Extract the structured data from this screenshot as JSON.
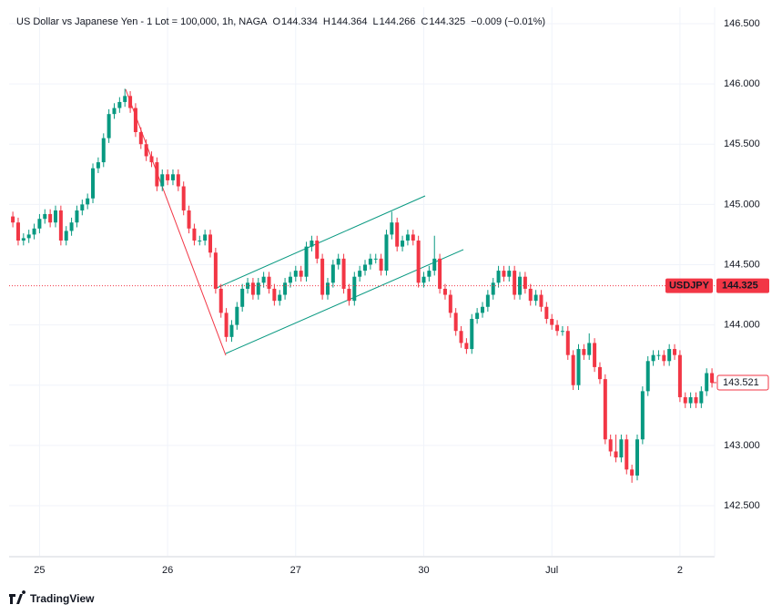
{
  "chart_data": {
    "type": "candlestick",
    "title": "US Dollar vs Japanese Yen - 1 Lot = 100,000, 1h, NAGA",
    "ohlc_legend": [
      {
        "label": "O",
        "value": 144.334
      },
      {
        "label": "H",
        "value": 144.364
      },
      {
        "label": "L",
        "value": 144.266
      },
      {
        "label": "C",
        "value": 144.325
      }
    ],
    "change": "−0.009 (−0.01%)",
    "up_color": "#089981",
    "down_color": "#f23645",
    "open": [
      144.9,
      144.85,
      144.7,
      144.72,
      144.75,
      144.8,
      144.88,
      144.92,
      144.85,
      144.95,
      144.7,
      144.78,
      144.85,
      144.95,
      145.0,
      145.05,
      145.3,
      145.35,
      145.55,
      145.75,
      145.8,
      145.85,
      145.9,
      145.8,
      145.6,
      145.5,
      145.4,
      145.35,
      145.15,
      145.25,
      145.2,
      145.25,
      145.15,
      144.95,
      144.8,
      144.7,
      144.7,
      144.75,
      144.6,
      144.3,
      144.1,
      143.9,
      144.0,
      144.15,
      144.3,
      144.35,
      144.25,
      144.35,
      144.4,
      144.3,
      144.2,
      144.25,
      144.35,
      144.4,
      144.45,
      144.4,
      144.65,
      144.7,
      144.55,
      144.25,
      144.35,
      144.5,
      144.55,
      144.3,
      144.2,
      144.4,
      144.45,
      144.5,
      144.55,
      144.55,
      144.45,
      144.75,
      144.85,
      144.65,
      144.7,
      144.75,
      144.7,
      144.35,
      144.4,
      144.45,
      144.55,
      144.3,
      144.25,
      144.1,
      143.95,
      143.85,
      143.8,
      144.05,
      144.1,
      144.15,
      144.25,
      144.35,
      144.45,
      144.4,
      144.45,
      144.25,
      144.4,
      144.3,
      144.2,
      144.25,
      144.15,
      144.05,
      144.0,
      143.95,
      143.95,
      143.75,
      143.5,
      143.8,
      143.75,
      143.85,
      143.65,
      143.55,
      143.05,
      142.95,
      142.9,
      143.05,
      142.8,
      142.75,
      143.05,
      143.45,
      143.7,
      143.75,
      143.75,
      143.7,
      143.8,
      143.75,
      143.4,
      143.35,
      143.4,
      143.35,
      143.45,
      143.6
    ],
    "high": [
      144.94,
      144.89,
      144.76,
      144.79,
      144.84,
      144.92,
      144.96,
      144.96,
      144.99,
      144.99,
      144.82,
      144.89,
      144.99,
      145.04,
      145.09,
      145.34,
      145.39,
      145.59,
      145.79,
      145.84,
      145.89,
      145.96,
      145.94,
      145.84,
      145.64,
      145.54,
      145.44,
      145.39,
      145.29,
      145.29,
      145.29,
      145.29,
      145.19,
      144.99,
      144.84,
      144.74,
      144.79,
      144.79,
      144.64,
      144.34,
      144.14,
      144.04,
      144.19,
      144.34,
      144.39,
      144.39,
      144.39,
      144.44,
      144.44,
      144.34,
      144.29,
      144.39,
      144.44,
      144.49,
      144.49,
      144.69,
      144.74,
      144.74,
      144.59,
      144.39,
      144.54,
      144.59,
      144.59,
      144.34,
      144.44,
      144.49,
      144.54,
      144.59,
      144.59,
      144.59,
      144.79,
      144.94,
      144.89,
      144.74,
      144.79,
      144.79,
      144.74,
      144.44,
      144.49,
      144.74,
      144.59,
      144.34,
      144.29,
      144.14,
      143.99,
      143.89,
      144.09,
      144.14,
      144.19,
      144.29,
      144.39,
      144.49,
      144.49,
      144.49,
      144.49,
      144.44,
      144.44,
      144.34,
      144.29,
      144.29,
      144.19,
      144.09,
      144.04,
      143.99,
      143.99,
      143.79,
      143.84,
      143.84,
      143.93,
      143.89,
      143.69,
      143.59,
      143.09,
      143.09,
      143.09,
      143.09,
      142.84,
      143.09,
      143.49,
      143.74,
      143.79,
      143.79,
      143.79,
      143.84,
      143.84,
      143.79,
      143.44,
      143.44,
      143.44,
      143.49,
      143.64,
      143.64
    ],
    "low": [
      144.81,
      144.66,
      144.66,
      144.68,
      144.71,
      144.76,
      144.84,
      144.81,
      144.81,
      144.66,
      144.66,
      144.74,
      144.81,
      144.91,
      144.96,
      145.01,
      145.26,
      145.31,
      145.51,
      145.71,
      145.76,
      145.81,
      145.76,
      145.56,
      145.46,
      145.36,
      145.31,
      145.11,
      145.11,
      145.16,
      145.16,
      145.11,
      144.91,
      144.76,
      144.66,
      144.66,
      144.66,
      144.56,
      144.26,
      144.06,
      143.86,
      143.86,
      143.96,
      144.11,
      144.26,
      144.21,
      144.21,
      144.31,
      144.26,
      144.16,
      144.16,
      144.21,
      144.31,
      144.36,
      144.36,
      144.36,
      144.61,
      144.51,
      144.21,
      144.21,
      144.31,
      144.46,
      144.26,
      144.16,
      144.16,
      144.36,
      144.41,
      144.46,
      144.51,
      144.41,
      144.41,
      144.71,
      144.61,
      144.61,
      144.66,
      144.66,
      144.31,
      144.31,
      144.36,
      144.41,
      144.26,
      144.21,
      144.06,
      143.91,
      143.81,
      143.76,
      143.76,
      144.01,
      144.06,
      144.11,
      144.21,
      144.31,
      144.36,
      144.36,
      144.21,
      144.21,
      144.26,
      144.16,
      144.16,
      144.11,
      144.01,
      143.96,
      143.91,
      143.91,
      143.71,
      143.46,
      143.46,
      143.71,
      143.71,
      143.61,
      143.51,
      143.01,
      142.91,
      142.86,
      142.86,
      142.76,
      142.69,
      142.71,
      143.01,
      143.41,
      143.66,
      143.71,
      143.66,
      143.66,
      143.71,
      143.36,
      143.31,
      143.31,
      143.31,
      143.31,
      143.41,
      143.48
    ],
    "close": [
      144.85,
      144.7,
      144.72,
      144.75,
      144.8,
      144.88,
      144.92,
      144.85,
      144.95,
      144.7,
      144.78,
      144.85,
      144.95,
      145.0,
      145.05,
      145.3,
      145.35,
      145.55,
      145.75,
      145.8,
      145.85,
      145.9,
      145.8,
      145.6,
      145.5,
      145.4,
      145.35,
      145.15,
      145.25,
      145.2,
      145.25,
      145.15,
      144.95,
      144.8,
      144.7,
      144.7,
      144.75,
      144.6,
      144.3,
      144.1,
      143.9,
      144.0,
      144.15,
      144.3,
      144.35,
      144.25,
      144.35,
      144.4,
      144.3,
      144.2,
      144.25,
      144.35,
      144.4,
      144.45,
      144.4,
      144.65,
      144.7,
      144.55,
      144.25,
      144.35,
      144.5,
      144.55,
      144.3,
      144.2,
      144.4,
      144.45,
      144.5,
      144.55,
      144.55,
      144.45,
      144.75,
      144.85,
      144.65,
      144.7,
      144.75,
      144.7,
      144.35,
      144.4,
      144.45,
      144.55,
      144.3,
      144.25,
      144.1,
      143.95,
      143.85,
      143.8,
      144.05,
      144.1,
      144.15,
      144.25,
      144.35,
      144.45,
      144.4,
      144.45,
      144.25,
      144.4,
      144.3,
      144.2,
      144.25,
      144.15,
      144.05,
      144.0,
      143.95,
      143.95,
      143.75,
      143.5,
      143.8,
      143.75,
      143.85,
      143.65,
      143.55,
      143.05,
      142.95,
      142.9,
      143.05,
      142.8,
      142.75,
      143.05,
      143.45,
      143.7,
      143.75,
      143.75,
      143.7,
      143.8,
      143.75,
      143.4,
      143.35,
      143.4,
      143.35,
      143.45,
      143.6,
      143.52
    ],
    "xlim": [
      -0.7,
      131.5
    ],
    "xticks": [
      {
        "value": 5,
        "label": "25"
      },
      {
        "value": 29,
        "label": "26"
      },
      {
        "value": 53,
        "label": "27"
      },
      {
        "value": 77,
        "label": "30"
      },
      {
        "value": 101,
        "label": "Jul"
      },
      {
        "value": 125,
        "label": "2"
      }
    ],
    "ylim": [
      142.084,
      146.636
    ],
    "yticks": [
      {
        "value": 142.5,
        "label": "142.500"
      },
      {
        "value": 143,
        "label": "143.000"
      },
      {
        "value": 143.5,
        "label": "143.500"
      },
      {
        "value": 144,
        "label": "144.000"
      },
      {
        "value": 144.5,
        "label": "144.500"
      },
      {
        "value": 145,
        "label": "145.000"
      },
      {
        "value": 145.5,
        "label": "145.500"
      },
      {
        "value": 146,
        "label": "146.000"
      },
      {
        "value": 146.5,
        "label": "146.500"
      }
    ],
    "grid": true,
    "price_labels": [
      {
        "name": "USDJPY",
        "value": 144.325,
        "color": "#f23645",
        "style": "filled"
      },
      {
        "value": 143.521,
        "color": "#f23645",
        "style": "outline"
      }
    ],
    "watermark": "TradingView"
  }
}
